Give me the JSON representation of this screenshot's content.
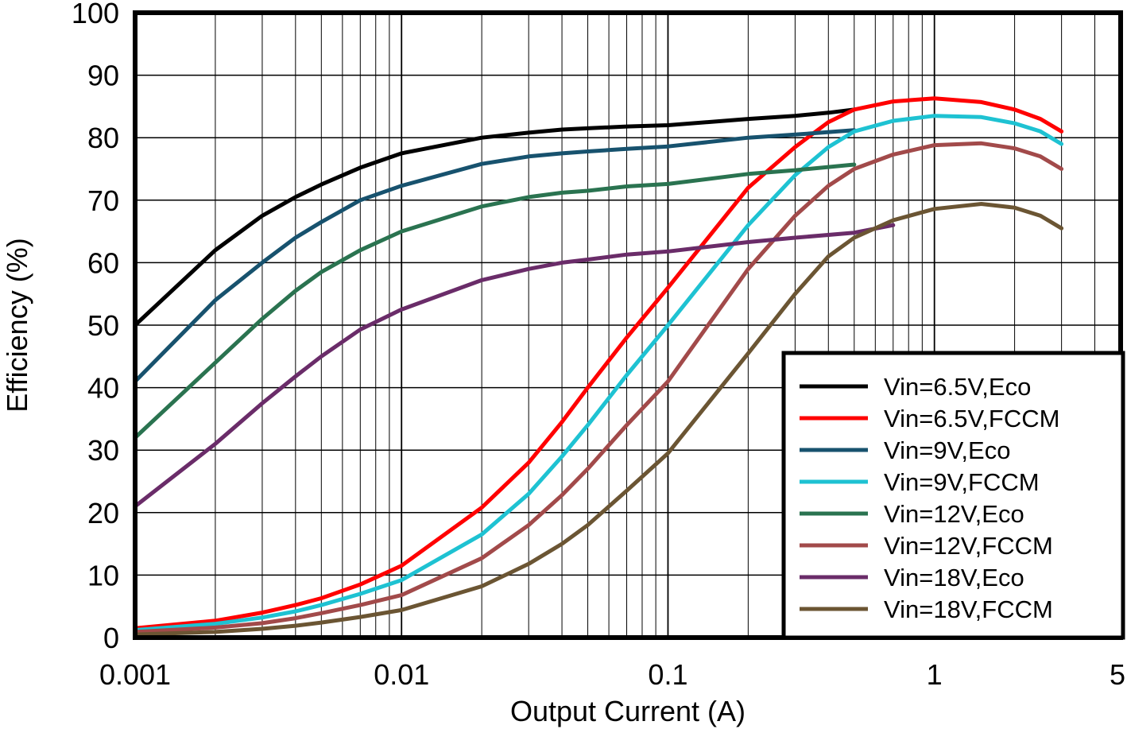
{
  "chart_data": {
    "type": "line",
    "title": "",
    "xlabel": "Output Current (A)",
    "ylabel": "Efficiency (%)",
    "x_scale": "log",
    "xlim": [
      0.001,
      5
    ],
    "ylim": [
      0,
      100
    ],
    "x_ticks": [
      {
        "value": 0.001,
        "label": "0.001"
      },
      {
        "value": 0.01,
        "label": "0.01"
      },
      {
        "value": 0.1,
        "label": "0.1"
      },
      {
        "value": 1,
        "label": "1"
      },
      {
        "value": 5,
        "label": "5"
      }
    ],
    "y_ticks": [
      {
        "value": 0,
        "label": "0"
      },
      {
        "value": 10,
        "label": "10"
      },
      {
        "value": 20,
        "label": "20"
      },
      {
        "value": 30,
        "label": "30"
      },
      {
        "value": 40,
        "label": "40"
      },
      {
        "value": 50,
        "label": "50"
      },
      {
        "value": 60,
        "label": "60"
      },
      {
        "value": 70,
        "label": "70"
      },
      {
        "value": 80,
        "label": "80"
      },
      {
        "value": 90,
        "label": "90"
      },
      {
        "value": 100,
        "label": "100"
      }
    ],
    "grid": true,
    "legend_position": "bottom-right",
    "series": [
      {
        "name": "Vin=6.5V,Eco",
        "color": "#000000",
        "x": [
          0.001,
          0.002,
          0.003,
          0.004,
          0.005,
          0.007,
          0.01,
          0.02,
          0.03,
          0.04,
          0.05,
          0.07,
          0.1,
          0.2,
          0.3,
          0.4,
          0.5
        ],
        "y": [
          50,
          62,
          67.5,
          70.5,
          72.5,
          75.2,
          77.5,
          80,
          80.8,
          81.3,
          81.5,
          81.8,
          82,
          83,
          83.5,
          84,
          84.5
        ]
      },
      {
        "name": "Vin=6.5V,FCCM",
        "color": "#ff0000",
        "x": [
          0.001,
          0.002,
          0.003,
          0.004,
          0.005,
          0.007,
          0.01,
          0.02,
          0.03,
          0.04,
          0.05,
          0.07,
          0.1,
          0.2,
          0.3,
          0.4,
          0.5,
          0.7,
          1,
          1.5,
          2,
          2.5,
          3
        ],
        "y": [
          1.5,
          2.7,
          4,
          5.2,
          6.3,
          8.5,
          11.5,
          20.8,
          28,
          34.5,
          40,
          48,
          56,
          72,
          78.5,
          82.5,
          84.5,
          85.8,
          86.3,
          85.7,
          84.5,
          83,
          81
        ]
      },
      {
        "name": "Vin=9V,Eco",
        "color": "#17526e",
        "x": [
          0.001,
          0.002,
          0.003,
          0.004,
          0.005,
          0.007,
          0.01,
          0.02,
          0.03,
          0.04,
          0.05,
          0.07,
          0.1,
          0.2,
          0.3,
          0.5
        ],
        "y": [
          41,
          54,
          60,
          64,
          66.5,
          70,
          72.3,
          75.8,
          77,
          77.5,
          77.8,
          78.2,
          78.6,
          80,
          80.5,
          81.2
        ]
      },
      {
        "name": "Vin=9V,FCCM",
        "color": "#1ec2d2",
        "x": [
          0.001,
          0.002,
          0.003,
          0.004,
          0.005,
          0.007,
          0.01,
          0.02,
          0.03,
          0.04,
          0.05,
          0.07,
          0.1,
          0.2,
          0.3,
          0.4,
          0.5,
          0.7,
          1,
          1.5,
          2,
          2.5,
          3
        ],
        "y": [
          1.2,
          2.2,
          3.2,
          4.2,
          5.2,
          7,
          9.2,
          16.5,
          23,
          29,
          34,
          42,
          50,
          66,
          74,
          78.5,
          81,
          82.7,
          83.5,
          83.3,
          82.3,
          81,
          79
        ]
      },
      {
        "name": "Vin=12V,Eco",
        "color": "#2a7350",
        "x": [
          0.001,
          0.002,
          0.003,
          0.004,
          0.005,
          0.007,
          0.01,
          0.02,
          0.03,
          0.04,
          0.05,
          0.07,
          0.1,
          0.2,
          0.3,
          0.5
        ],
        "y": [
          32,
          44,
          51,
          55.5,
          58.5,
          62,
          65,
          69,
          70.5,
          71.2,
          71.5,
          72.2,
          72.6,
          74.2,
          74.8,
          75.7
        ]
      },
      {
        "name": "Vin=12V,FCCM",
        "color": "#a24a4a",
        "x": [
          0.001,
          0.002,
          0.003,
          0.004,
          0.005,
          0.007,
          0.01,
          0.02,
          0.03,
          0.04,
          0.05,
          0.07,
          0.1,
          0.2,
          0.3,
          0.4,
          0.5,
          0.7,
          1,
          1.5,
          2,
          2.5,
          3
        ],
        "y": [
          0.9,
          1.6,
          2.3,
          3.1,
          3.9,
          5.2,
          6.8,
          12.7,
          18,
          22.8,
          27,
          34,
          41,
          59,
          67.5,
          72.3,
          75,
          77.3,
          78.8,
          79.1,
          78.3,
          77,
          75
        ]
      },
      {
        "name": "Vin=18V,Eco",
        "color": "#6a2c69",
        "x": [
          0.001,
          0.002,
          0.003,
          0.004,
          0.005,
          0.007,
          0.01,
          0.02,
          0.03,
          0.04,
          0.05,
          0.07,
          0.1,
          0.2,
          0.3,
          0.5,
          0.7
        ],
        "y": [
          21,
          31,
          37.5,
          41.8,
          45,
          49.3,
          52.5,
          57.2,
          59,
          60,
          60.5,
          61.3,
          61.8,
          63.3,
          64,
          64.8,
          66
        ]
      },
      {
        "name": "Vin=18V,FCCM",
        "color": "#6b5533",
        "x": [
          0.001,
          0.002,
          0.003,
          0.004,
          0.005,
          0.007,
          0.01,
          0.02,
          0.03,
          0.04,
          0.05,
          0.07,
          0.1,
          0.2,
          0.3,
          0.4,
          0.5,
          0.7,
          1,
          1.5,
          2,
          2.5,
          3
        ],
        "y": [
          0.5,
          0.9,
          1.4,
          1.9,
          2.4,
          3.3,
          4.4,
          8.2,
          11.8,
          15,
          18,
          23.5,
          29.5,
          45.5,
          55,
          61,
          64,
          66.8,
          68.6,
          69.4,
          68.8,
          67.5,
          65.5
        ]
      }
    ]
  }
}
